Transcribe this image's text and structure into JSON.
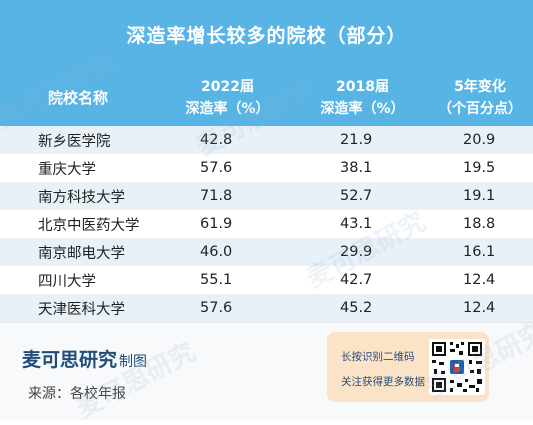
{
  "title": "深造率增长较多的院校（部分）",
  "columns": {
    "name": "院校名称",
    "c1_top": "2022届",
    "c1_bottom": "深造率（%）",
    "c2_top": "2018届",
    "c2_bottom": "深造率（%）",
    "c3_top": "5年变化",
    "c3_bottom": "（个百分点）"
  },
  "rows": [
    {
      "name": "新乡医学院",
      "v2022": "42.8",
      "v2018": "21.9",
      "change": "20.9"
    },
    {
      "name": "重庆大学",
      "v2022": "57.6",
      "v2018": "38.1",
      "change": "19.5"
    },
    {
      "name": "南方科技大学",
      "v2022": "71.8",
      "v2018": "52.7",
      "change": "19.1"
    },
    {
      "name": "北京中医药大学",
      "v2022": "61.9",
      "v2018": "43.1",
      "change": "18.8"
    },
    {
      "name": "南京邮电大学",
      "v2022": "46.0",
      "v2018": "29.9",
      "change": "16.1"
    },
    {
      "name": "四川大学",
      "v2022": "55.1",
      "v2018": "42.7",
      "change": "12.4"
    },
    {
      "name": "天津医科大学",
      "v2022": "57.6",
      "v2018": "45.2",
      "change": "12.4"
    }
  ],
  "footer": {
    "brand": "麦可思研究",
    "brand_suffix": "制图",
    "source": "来源：各校年报"
  },
  "qr": {
    "line1": "长按识别二维码",
    "line2": "关注获得更多数据"
  },
  "watermark": "麦可思研究",
  "colors": {
    "header_bg": "#59b4e6",
    "row_odd": "#e8f1f7",
    "qr_box": "#fbe3c8",
    "brand": "#1f4e79"
  }
}
